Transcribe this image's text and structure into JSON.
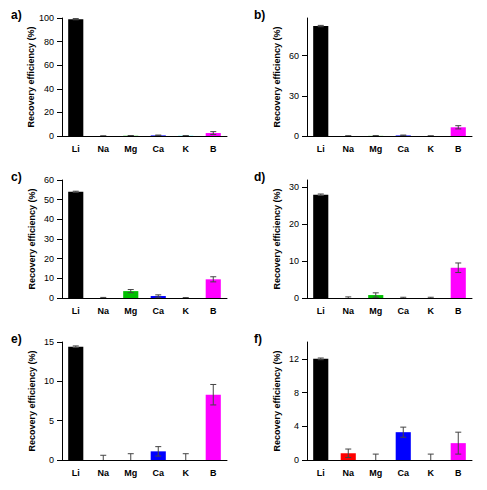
{
  "chart_data": [
    {
      "type": "bar",
      "title": "a)",
      "y_label": "Recovery efficiency (%)",
      "categories": [
        "Li",
        "Na",
        "Mg",
        "Ca",
        "K",
        "B"
      ],
      "values": [
        99,
        0,
        0.2,
        0.5,
        0.2,
        2.5
      ],
      "errors": [
        0.5,
        0.1,
        0.2,
        0.3,
        0.1,
        1.2
      ],
      "colors": [
        "#000000",
        "#ff0000",
        "#00c000",
        "#0000ff",
        "#00ffff",
        "#ff00ff"
      ],
      "ylim": [
        0,
        100
      ],
      "yticks": [
        0,
        20,
        40,
        60,
        80,
        100
      ],
      "grid": false
    },
    {
      "type": "bar",
      "title": "b)",
      "y_label": "Recovery efficiency (%)",
      "categories": [
        "Li",
        "Na",
        "Mg",
        "Ca",
        "K",
        "B"
      ],
      "values": [
        82,
        0,
        0.1,
        0.4,
        0,
        6.5
      ],
      "errors": [
        0.5,
        0.2,
        0.2,
        0.3,
        0.1,
        1.2
      ],
      "colors": [
        "#000000",
        "#ff0000",
        "#00c000",
        "#0000ff",
        "#00ffff",
        "#ff00ff"
      ],
      "ylim": [
        0,
        88
      ],
      "yticks": [
        0,
        30,
        60
      ],
      "grid": false
    },
    {
      "type": "bar",
      "title": "c)",
      "y_label": "Recovery efficiency (%)",
      "categories": [
        "Li",
        "Na",
        "Mg",
        "Ca",
        "K",
        "B"
      ],
      "values": [
        54,
        0,
        3.5,
        1,
        0,
        9.5
      ],
      "errors": [
        0.3,
        0.3,
        0.8,
        0.6,
        0.2,
        1.3
      ],
      "colors": [
        "#000000",
        "#ff0000",
        "#00c000",
        "#0000ff",
        "#00ffff",
        "#ff00ff"
      ],
      "ylim": [
        0,
        60
      ],
      "yticks": [
        0,
        10,
        20,
        30,
        40,
        50,
        60
      ],
      "grid": false
    },
    {
      "type": "bar",
      "title": "d)",
      "y_label": "Recovery efficiency (%)",
      "categories": [
        "Li",
        "Na",
        "Mg",
        "Ca",
        "K",
        "B"
      ],
      "values": [
        28,
        0,
        0.8,
        0,
        0,
        8.2
      ],
      "errors": [
        0.2,
        0.3,
        0.6,
        0.2,
        0.2,
        1.3
      ],
      "colors": [
        "#000000",
        "#ff0000",
        "#00c000",
        "#0000ff",
        "#00ffff",
        "#ff00ff"
      ],
      "ylim": [
        0,
        32
      ],
      "yticks": [
        0,
        10,
        20,
        30
      ],
      "grid": false
    },
    {
      "type": "bar",
      "title": "e)",
      "y_label": "Recovery efficiency (%)",
      "categories": [
        "Li",
        "Na",
        "Mg",
        "Ca",
        "K",
        "B"
      ],
      "values": [
        14.4,
        0,
        0,
        1.1,
        0,
        8.3
      ],
      "errors": [
        0.1,
        0.6,
        0.8,
        0.6,
        0.8,
        1.3
      ],
      "colors": [
        "#000000",
        "#ff0000",
        "#00c000",
        "#0000ff",
        "#00ffff",
        "#ff00ff"
      ],
      "ylim": [
        0,
        15
      ],
      "yticks": [
        0,
        5,
        10,
        15
      ],
      "grid": false
    },
    {
      "type": "bar",
      "title": "f)",
      "y_label": "Recovery efficiency (%)",
      "categories": [
        "Li",
        "Na",
        "Mg",
        "Ca",
        "K",
        "B"
      ],
      "values": [
        12,
        0.8,
        0,
        3.3,
        0,
        2
      ],
      "errors": [
        0.1,
        0.5,
        0.7,
        0.6,
        0.7,
        1.3
      ],
      "colors": [
        "#000000",
        "#ff0000",
        "#00c000",
        "#0000ff",
        "#00ffff",
        "#ff00ff"
      ],
      "ylim": [
        0,
        14
      ],
      "yticks": [
        0,
        4,
        8,
        12
      ],
      "grid": false
    }
  ]
}
